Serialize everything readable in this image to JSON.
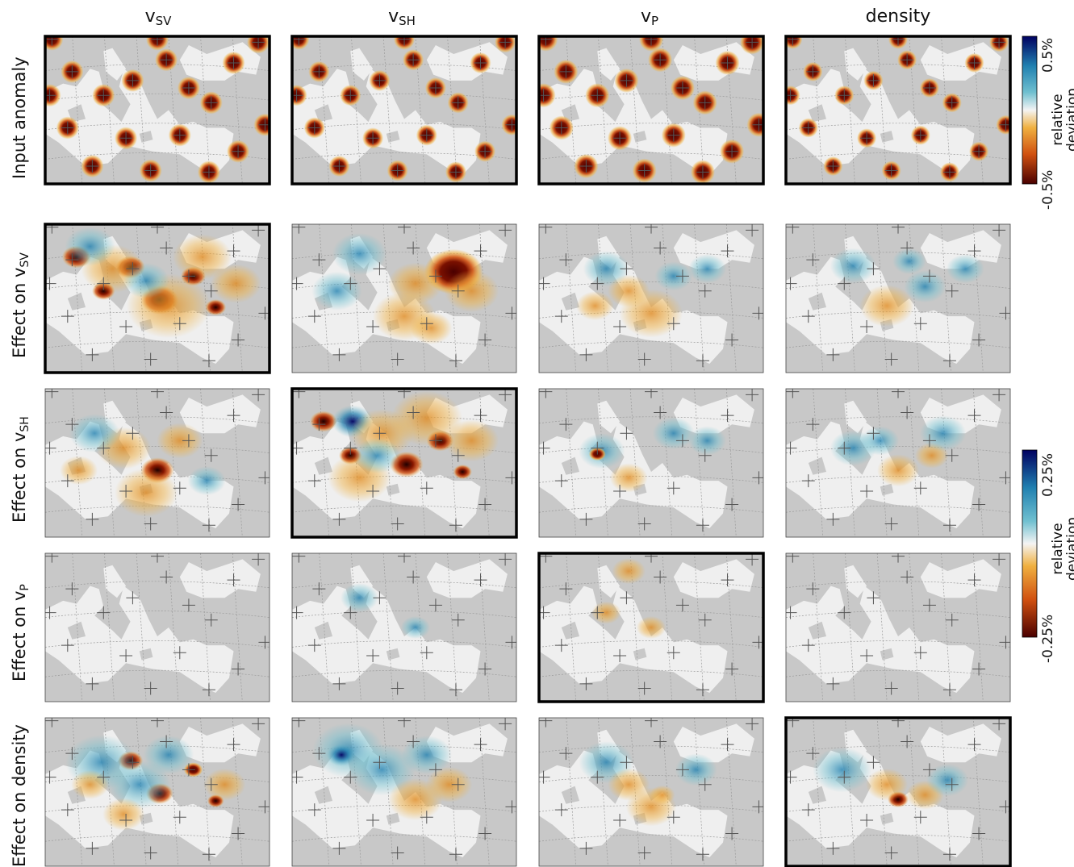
{
  "columns": [
    {
      "base": "v",
      "sub": "SV"
    },
    {
      "base": "v",
      "sub": "SH"
    },
    {
      "base": "v",
      "sub": "P"
    },
    {
      "base": "",
      "sub": "",
      "plain": "density"
    }
  ],
  "rows": [
    {
      "label": "Input anomaly",
      "base": "",
      "sub": ""
    },
    {
      "label": "Effect on ",
      "base": "v",
      "sub": "SV"
    },
    {
      "label": "Effect on ",
      "base": "v",
      "sub": "SH"
    },
    {
      "label": "Effect on ",
      "base": "v",
      "sub": "P"
    },
    {
      "label": "Effect on density",
      "base": "",
      "sub": ""
    }
  ],
  "colorbars": [
    {
      "max_label": "0.5%",
      "min_label": "-0.5%",
      "title_line1": "relative",
      "title_line2": "deviation"
    },
    {
      "max_label": "0.25%",
      "min_label": "-0.25%",
      "title_line1": "relative",
      "title_line2": "deviation"
    }
  ],
  "colors": {
    "land": "#c8c8c8",
    "sea": "#efefef",
    "grid": "#9a9a9a",
    "negative_dark": "#4a0000",
    "negative_mid": "#d05010",
    "negative_light": "#f0b040",
    "positive_light": "#70c0d0",
    "positive_mid": "#2080b0",
    "positive_dark": "#000060"
  },
  "highlighted_panels": [
    [
      0,
      0
    ],
    [
      0,
      1
    ],
    [
      0,
      2
    ],
    [
      0,
      3
    ],
    [
      1,
      0
    ],
    [
      2,
      1
    ],
    [
      3,
      2
    ],
    [
      4,
      3
    ]
  ]
}
